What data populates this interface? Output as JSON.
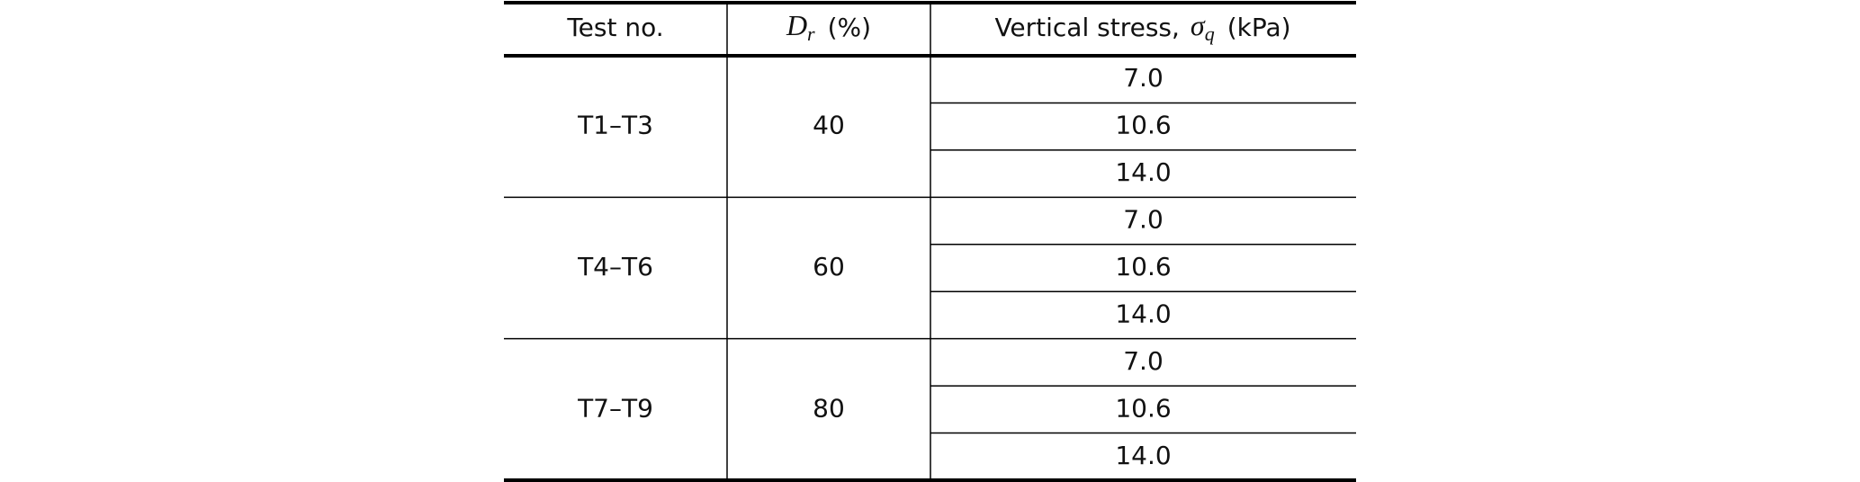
{
  "table": {
    "header": [
      {
        "text": "Test no."
      },
      {
        "symbol": "D",
        "subscript": "r",
        "unit": "(%)"
      },
      {
        "text": "Vertical stress,",
        "symbol": "σ",
        "subscript": "q",
        "unit": "(kPa)"
      }
    ],
    "groups": [
      {
        "test": "T1–T3",
        "dr": "40",
        "stresses": [
          "7.0",
          "10.6",
          "14.0"
        ]
      },
      {
        "test": "T4–T6",
        "dr": "60",
        "stresses": [
          "7.0",
          "10.6",
          "14.0"
        ]
      },
      {
        "test": "T7–T9",
        "dr": "80",
        "stresses": [
          "7.0",
          "10.6",
          "14.0"
        ]
      }
    ]
  }
}
